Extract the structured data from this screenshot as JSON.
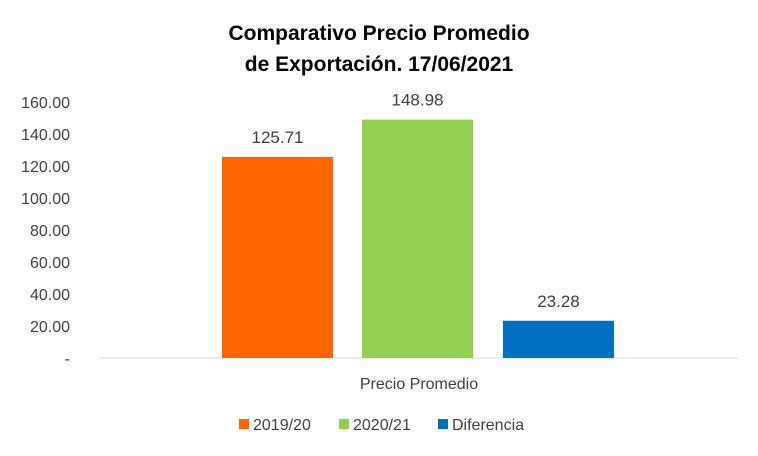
{
  "chart_data": {
    "type": "bar",
    "title_line1": "Comparativo Precio Promedio",
    "title_line2": "de Exportación. 17/06/2021",
    "categories": [
      "Precio Promedio"
    ],
    "series": [
      {
        "name": "2019/20",
        "values": [
          125.71
        ],
        "label": "125.71",
        "color": "#FF6600"
      },
      {
        "name": "2020/21",
        "values": [
          148.98
        ],
        "label": "148.98",
        "color": "#92D050"
      },
      {
        "name": "Diferencia",
        "values": [
          23.28
        ],
        "label": "23.28",
        "color": "#0070C0"
      }
    ],
    "yticks": [
      0,
      20,
      40,
      60,
      80,
      100,
      120,
      140,
      160
    ],
    "ytick_labels": [
      "-",
      "20.00",
      "40.00",
      "60.00",
      "80.00",
      "100.00",
      "120.00",
      "140.00",
      "160.00"
    ],
    "ylim": [
      0,
      160
    ],
    "grid": false,
    "legend_position": "bottom"
  }
}
